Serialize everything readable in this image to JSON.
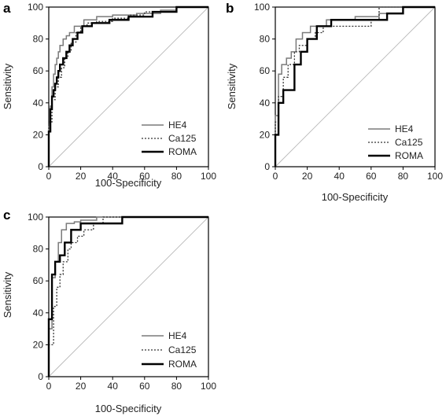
{
  "figure": {
    "panel_labels": [
      "a",
      "b",
      "c"
    ]
  },
  "chart_data": [
    {
      "panel": "a",
      "type": "line",
      "xlabel": "100-Specificity",
      "ylabel": "Sensitivity",
      "xlim": [
        0,
        100
      ],
      "ylim": [
        0,
        100
      ],
      "xticks": [
        0,
        20,
        40,
        60,
        80,
        100
      ],
      "yticks": [
        0,
        20,
        40,
        60,
        80,
        100
      ],
      "legend_position": "bottom-right",
      "reference_line": true,
      "series": [
        {
          "name": "HE4",
          "style": "solid-gray",
          "color": "#7a7a7a",
          "x": [
            0,
            0,
            1,
            1,
            2,
            2,
            3,
            3,
            4,
            4,
            5,
            5,
            6,
            6,
            7,
            7,
            9,
            9,
            11,
            11,
            13,
            13,
            16,
            16,
            22,
            22,
            30,
            30,
            40,
            40,
            55,
            55,
            70,
            70,
            80,
            80,
            100
          ],
          "y": [
            0,
            25,
            25,
            38,
            38,
            50,
            50,
            58,
            58,
            64,
            64,
            68,
            68,
            72,
            72,
            76,
            76,
            80,
            80,
            82,
            82,
            84,
            84,
            88,
            88,
            92,
            92,
            94,
            94,
            95,
            95,
            96,
            96,
            98,
            98,
            100,
            100
          ]
        },
        {
          "name": "Ca125",
          "style": "dotted",
          "color": "#333333",
          "x": [
            0,
            0,
            2,
            2,
            4,
            4,
            6,
            6,
            8,
            8,
            10,
            10,
            12,
            12,
            14,
            14,
            17,
            17,
            20,
            20,
            24,
            24,
            30,
            30,
            40,
            40,
            50,
            50,
            60,
            60,
            80,
            80,
            100
          ],
          "y": [
            0,
            28,
            28,
            42,
            42,
            50,
            50,
            56,
            56,
            62,
            62,
            68,
            68,
            72,
            72,
            78,
            78,
            84,
            84,
            88,
            88,
            90,
            90,
            91,
            91,
            93,
            93,
            95,
            95,
            97,
            97,
            100,
            100
          ]
        },
        {
          "name": "ROMA",
          "style": "solid-black",
          "color": "#000000",
          "x": [
            0,
            0,
            1,
            1,
            2,
            2,
            3,
            3,
            4,
            4,
            5,
            5,
            6,
            6,
            7,
            7,
            9,
            9,
            11,
            11,
            13,
            13,
            15,
            15,
            18,
            18,
            21,
            21,
            27,
            27,
            38,
            38,
            50,
            50,
            65,
            65,
            80,
            80,
            100
          ],
          "y": [
            0,
            22,
            22,
            36,
            36,
            44,
            44,
            48,
            48,
            52,
            52,
            56,
            56,
            60,
            60,
            64,
            64,
            68,
            68,
            72,
            72,
            76,
            76,
            80,
            80,
            84,
            84,
            88,
            88,
            90,
            90,
            92,
            92,
            94,
            94,
            97,
            97,
            100,
            100
          ]
        }
      ]
    },
    {
      "panel": "b",
      "type": "line",
      "xlabel": "100-Specificity",
      "ylabel": "Sensitivity",
      "xlim": [
        0,
        100
      ],
      "ylim": [
        0,
        100
      ],
      "xticks": [
        0,
        20,
        40,
        60,
        80,
        100
      ],
      "yticks": [
        0,
        20,
        40,
        60,
        80,
        100
      ],
      "legend_position": "bottom-right",
      "reference_line": true,
      "series": [
        {
          "name": "HE4",
          "style": "solid-gray",
          "color": "#7a7a7a",
          "x": [
            0,
            0,
            2,
            2,
            4,
            4,
            7,
            7,
            10,
            10,
            13,
            13,
            17,
            17,
            22,
            22,
            32,
            32,
            50,
            50,
            65,
            65,
            80,
            80,
            100
          ],
          "y": [
            0,
            32,
            32,
            58,
            58,
            64,
            64,
            68,
            68,
            72,
            72,
            80,
            80,
            84,
            84,
            88,
            88,
            92,
            92,
            94,
            94,
            96,
            96,
            100,
            100
          ]
        },
        {
          "name": "Ca125",
          "style": "dotted",
          "color": "#333333",
          "x": [
            0,
            0,
            2,
            2,
            5,
            5,
            8,
            8,
            12,
            12,
            15,
            15,
            20,
            20,
            25,
            25,
            30,
            30,
            60,
            60,
            65,
            65,
            100
          ],
          "y": [
            0,
            28,
            28,
            44,
            44,
            56,
            56,
            64,
            64,
            72,
            72,
            76,
            76,
            80,
            80,
            84,
            84,
            88,
            88,
            92,
            92,
            100,
            100
          ]
        },
        {
          "name": "ROMA",
          "style": "solid-black",
          "color": "#000000",
          "x": [
            0,
            0,
            2,
            2,
            5,
            5,
            12,
            12,
            16,
            16,
            20,
            20,
            26,
            26,
            35,
            35,
            60,
            60,
            70,
            70,
            80,
            80,
            100
          ],
          "y": [
            0,
            20,
            20,
            40,
            40,
            48,
            48,
            64,
            64,
            72,
            72,
            80,
            80,
            88,
            88,
            92,
            92,
            92,
            92,
            96,
            96,
            100,
            100
          ]
        }
      ]
    },
    {
      "panel": "c",
      "type": "line",
      "xlabel": "100-Specificity",
      "ylabel": "Sensitivity",
      "xlim": [
        0,
        100
      ],
      "ylim": [
        0,
        100
      ],
      "xticks": [
        0,
        20,
        40,
        60,
        80,
        100
      ],
      "yticks": [
        0,
        20,
        40,
        60,
        80,
        100
      ],
      "legend_position": "bottom-right",
      "reference_line": true,
      "series": [
        {
          "name": "HE4",
          "style": "solid-gray",
          "color": "#7a7a7a",
          "x": [
            0,
            0,
            2,
            2,
            4,
            4,
            6,
            6,
            8,
            8,
            11,
            11,
            16,
            16,
            20,
            20,
            30,
            30,
            40,
            40,
            100
          ],
          "y": [
            0,
            30,
            30,
            62,
            62,
            72,
            72,
            84,
            84,
            92,
            92,
            96,
            96,
            97,
            97,
            98,
            98,
            100,
            100,
            100,
            100
          ]
        },
        {
          "name": "Ca125",
          "style": "dotted",
          "color": "#333333",
          "x": [
            0,
            0,
            3,
            3,
            5,
            5,
            7,
            7,
            9,
            9,
            12,
            12,
            14,
            14,
            18,
            18,
            22,
            22,
            28,
            28,
            34,
            34,
            100
          ],
          "y": [
            0,
            20,
            20,
            44,
            44,
            56,
            56,
            64,
            64,
            72,
            72,
            80,
            80,
            84,
            84,
            88,
            88,
            92,
            92,
            96,
            96,
            100,
            100
          ]
        },
        {
          "name": "ROMA",
          "style": "solid-black",
          "color": "#000000",
          "x": [
            0,
            0,
            2,
            2,
            4,
            4,
            7,
            7,
            10,
            10,
            14,
            14,
            20,
            20,
            28,
            28,
            46,
            46,
            100
          ],
          "y": [
            0,
            36,
            36,
            64,
            64,
            72,
            72,
            76,
            76,
            84,
            84,
            92,
            92,
            96,
            96,
            96,
            96,
            100,
            100
          ]
        }
      ]
    }
  ]
}
